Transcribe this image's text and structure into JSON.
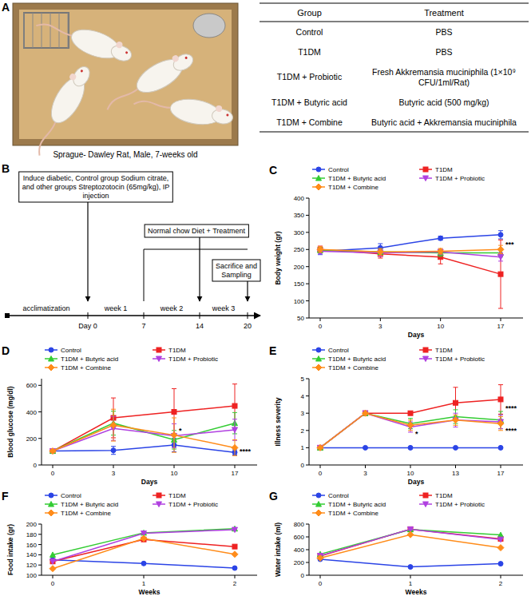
{
  "panel_labels": [
    "A",
    "B",
    "C",
    "D",
    "E",
    "F",
    "G"
  ],
  "photo": {
    "caption": "Sprague- Dawley Rat, Male, 7-weeks old"
  },
  "table": {
    "header": [
      "Group",
      "Treatment"
    ],
    "rows": [
      [
        "Control",
        "PBS"
      ],
      [
        "T1DM",
        "PBS"
      ],
      [
        "T1DM + Probiotic",
        "Fresh Akkremansia muciniphila (1×10⁹ CFU/1ml/Rat)"
      ],
      [
        "T1DM + Butyric acid",
        "Butyric acid (500 mg/kg)"
      ],
      [
        "T1DM + Combine",
        "Butyric acid + Akkremansia muciniphila"
      ]
    ]
  },
  "timeline": {
    "boxes": [
      "Induce diabetic, Control group Sodium citrate, and other groups Streptozotocin (65mg/kg), IP injection",
      "Normal chow Diet + Treatment",
      "Sacrifice and Sampling"
    ],
    "phases": [
      "acclimatization",
      "week 1",
      "week 2",
      "week 3"
    ],
    "days": [
      "Day 0",
      "7",
      "14",
      "20"
    ]
  },
  "chart_data": [
    {
      "type": "line",
      "x_label": "Days",
      "y_label": "Body weight (gr)",
      "legend": "top",
      "categories": [
        "0",
        "3",
        "10",
        "17"
      ],
      "ylim": [
        50,
        400
      ],
      "yticks": [
        50,
        100,
        150,
        200,
        250,
        300,
        350,
        400
      ],
      "series": [
        {
          "name": "Control",
          "color": "#2b44e6",
          "marker": "circle",
          "values": [
            245,
            255,
            283,
            293
          ],
          "errors": [
            10,
            12,
            6,
            12
          ]
        },
        {
          "name": "T1DM",
          "color": "#ee2222",
          "marker": "square",
          "values": [
            250,
            237,
            228,
            178
          ],
          "errors": [
            10,
            12,
            20,
            100
          ]
        },
        {
          "name": "T1DM + Butyric acid",
          "color": "#33cc33",
          "marker": "triangle",
          "values": [
            248,
            243,
            240,
            240
          ],
          "errors": [
            8,
            8,
            10,
            12
          ]
        },
        {
          "name": "T1DM + Probiotic",
          "color": "#b040e0",
          "marker": "triangle-down",
          "values": [
            245,
            240,
            243,
            228
          ],
          "errors": [
            8,
            10,
            8,
            12
          ]
        },
        {
          "name": "T1DM + Combine",
          "color": "#ff8c1a",
          "marker": "diamond",
          "values": [
            250,
            243,
            245,
            250
          ],
          "errors": [
            8,
            10,
            8,
            12
          ]
        }
      ],
      "annotations": [
        {
          "text": "***",
          "x": "17",
          "y": 265
        }
      ]
    },
    {
      "type": "line",
      "x_label": "Days",
      "y_label": "Blood glucose (mg/dl)",
      "legend": "top",
      "categories": [
        "0",
        "3",
        "10",
        "17"
      ],
      "ylim": [
        0,
        650
      ],
      "yticks": [
        0,
        200,
        400,
        600
      ],
      "series": [
        {
          "name": "Control",
          "color": "#2b44e6",
          "marker": "circle",
          "values": [
            105,
            110,
            150,
            95
          ],
          "errors": [
            10,
            30,
            50,
            20
          ]
        },
        {
          "name": "T1DM",
          "color": "#ee2222",
          "marker": "square",
          "values": [
            105,
            355,
            400,
            445
          ],
          "errors": [
            10,
            150,
            175,
            165
          ]
        },
        {
          "name": "T1DM + Butyric acid",
          "color": "#33cc33",
          "marker": "triangle",
          "values": [
            105,
            315,
            190,
            315
          ],
          "errors": [
            10,
            90,
            70,
            80
          ]
        },
        {
          "name": "T1DM + Probiotic",
          "color": "#b040e0",
          "marker": "triangle-down",
          "values": [
            105,
            275,
            220,
            265
          ],
          "errors": [
            10,
            90,
            90,
            80
          ]
        },
        {
          "name": "T1DM + Combine",
          "color": "#ff8c1a",
          "marker": "diamond",
          "values": [
            105,
            300,
            225,
            130
          ],
          "errors": [
            10,
            120,
            130,
            60
          ]
        }
      ],
      "annotations": [
        {
          "text": "*",
          "x": "10",
          "y": 260
        },
        {
          "text": "****",
          "x": "17",
          "y": 100
        }
      ]
    },
    {
      "type": "line",
      "x_label": "Days",
      "y_label": "Illness severity",
      "legend": "top",
      "categories": [
        "0",
        "3",
        "10",
        "13",
        "17"
      ],
      "ylim": [
        0,
        5
      ],
      "yticks": [
        0,
        1,
        2,
        3,
        4,
        5
      ],
      "series": [
        {
          "name": "Control",
          "color": "#2b44e6",
          "marker": "circle",
          "values": [
            1,
            1,
            1,
            1,
            1
          ],
          "errors": [
            0,
            0,
            0,
            0,
            0
          ]
        },
        {
          "name": "T1DM",
          "color": "#ee2222",
          "marker": "square",
          "values": [
            1,
            3,
            3,
            3.6,
            3.8
          ],
          "errors": [
            0,
            0,
            0,
            0.9,
            0.85
          ]
        },
        {
          "name": "T1DM + Butyric acid",
          "color": "#33cc33",
          "marker": "triangle",
          "values": [
            1,
            3,
            2.4,
            2.8,
            2.6
          ],
          "errors": [
            0,
            0,
            0.3,
            0.4,
            0.5
          ]
        },
        {
          "name": "T1DM + Probiotic",
          "color": "#b040e0",
          "marker": "triangle-down",
          "values": [
            1,
            3,
            2.2,
            2.6,
            2.5
          ],
          "errors": [
            0,
            0,
            0.3,
            0.4,
            0.4
          ]
        },
        {
          "name": "T1DM + Combine",
          "color": "#ff8c1a",
          "marker": "diamond",
          "values": [
            1,
            3,
            2.3,
            2.6,
            2.4
          ],
          "errors": [
            0,
            0,
            0.3,
            0.3,
            0.4
          ]
        }
      ],
      "annotations": [
        {
          "text": "*",
          "x": "10",
          "y": 1.8
        },
        {
          "text": "****",
          "x": "17",
          "y": 3.3
        },
        {
          "text": "****",
          "x": "17",
          "y": 2.0
        }
      ]
    },
    {
      "type": "line",
      "x_label": "Weeks",
      "y_label": "Food intake (gr)",
      "legend": "top",
      "categories": [
        "0",
        "1",
        "2"
      ],
      "ylim": [
        100,
        200
      ],
      "yticks": [
        100,
        120,
        140,
        160,
        180,
        200
      ],
      "series": [
        {
          "name": "Control",
          "color": "#2b44e6",
          "marker": "circle",
          "values": [
            130,
            123,
            114
          ]
        },
        {
          "name": "T1DM",
          "color": "#ee2222",
          "marker": "square",
          "values": [
            127,
            170,
            156
          ]
        },
        {
          "name": "T1DM + Butyric acid",
          "color": "#33cc33",
          "marker": "triangle",
          "values": [
            140,
            183,
            191
          ]
        },
        {
          "name": "T1DM + Probiotic",
          "color": "#b040e0",
          "marker": "triangle-down",
          "values": [
            127,
            182,
            189
          ]
        },
        {
          "name": "T1DM + Combine",
          "color": "#ff8c1a",
          "marker": "diamond",
          "values": [
            113,
            172,
            141
          ]
        }
      ]
    },
    {
      "type": "line",
      "x_label": "Weeks",
      "y_label": "Water intake (ml)",
      "legend": "top",
      "categories": [
        "0",
        "1",
        "2"
      ],
      "ylim": [
        0,
        800
      ],
      "yticks": [
        0,
        200,
        400,
        600,
        800
      ],
      "series": [
        {
          "name": "Control",
          "color": "#2b44e6",
          "marker": "circle",
          "values": [
            250,
            130,
            180
          ]
        },
        {
          "name": "T1DM",
          "color": "#ee2222",
          "marker": "square",
          "values": [
            300,
            720,
            570
          ]
        },
        {
          "name": "T1DM + Butyric acid",
          "color": "#33cc33",
          "marker": "triangle",
          "values": [
            330,
            715,
            630
          ]
        },
        {
          "name": "T1DM + Probiotic",
          "color": "#b040e0",
          "marker": "triangle-down",
          "values": [
            305,
            720,
            560
          ]
        },
        {
          "name": "T1DM + Combine",
          "color": "#ff8c1a",
          "marker": "diamond",
          "values": [
            270,
            635,
            430
          ]
        }
      ]
    }
  ]
}
